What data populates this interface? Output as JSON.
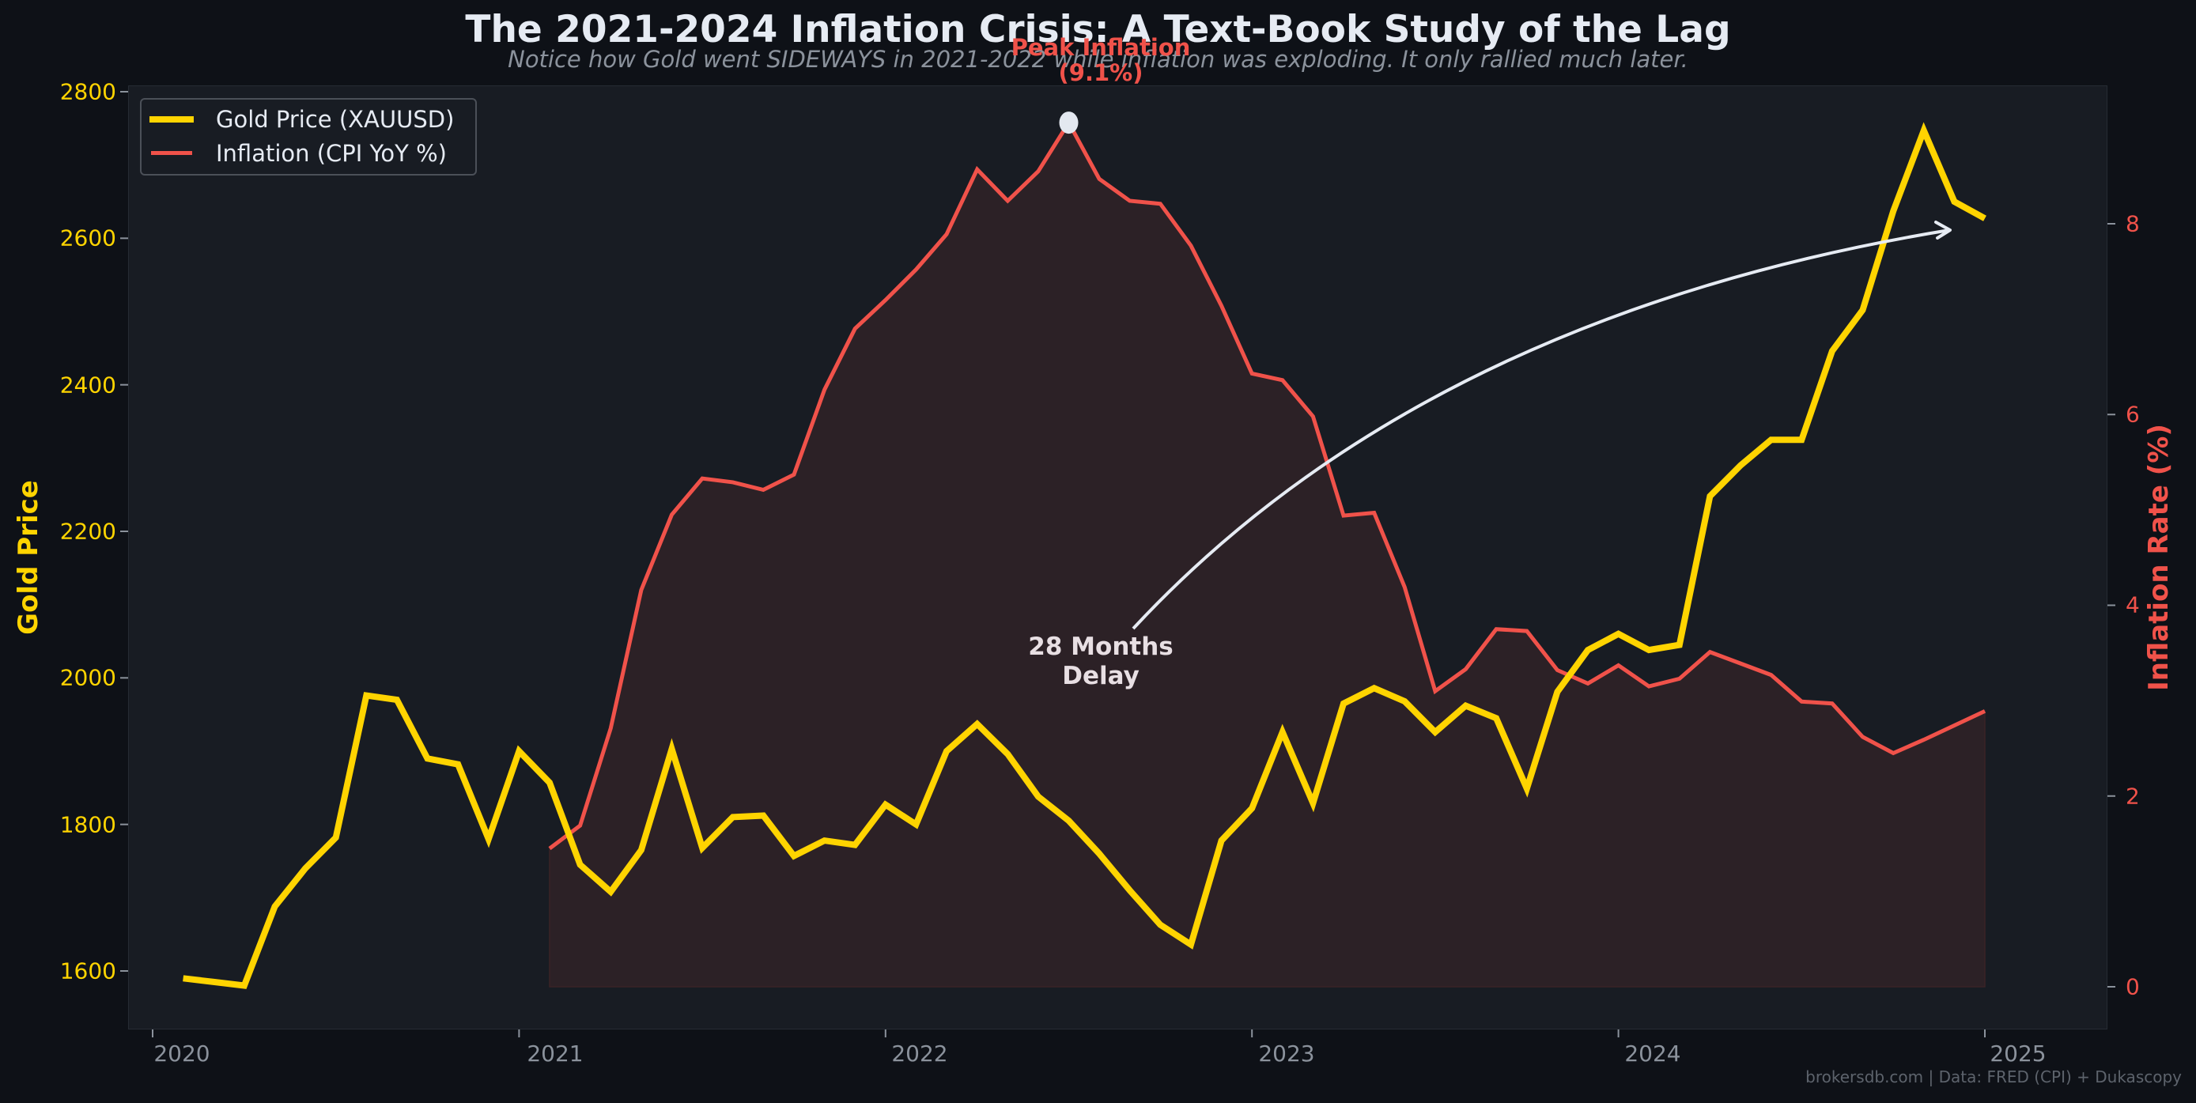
{
  "header": {
    "title": "The 2021-2024 Inflation Crisis: A Text-Book Study of the Lag",
    "subtitle": "Notice how Gold went SIDEWAYS in 2021-2022 while inflation was exploding. It only rallied much later."
  },
  "legend": {
    "items": [
      {
        "label": "Gold Price (XAUUSD)",
        "color": "#ffd400"
      },
      {
        "label": "Inflation (CPI YoY %)",
        "color": "#f0524a"
      }
    ]
  },
  "annotations": {
    "peak_line1": "Peak Inflation",
    "peak_line2": "(9.1%)",
    "delay_line1": "28 Months",
    "delay_line2": "Delay"
  },
  "axes": {
    "left_label": "Gold Price",
    "right_label": "Inflation Rate (%)",
    "left_ticks": [
      "1600",
      "1800",
      "2000",
      "2200",
      "2400",
      "2600",
      "2800"
    ],
    "right_ticks": [
      "0",
      "2",
      "4",
      "6",
      "8"
    ],
    "x_ticks": [
      "2020",
      "2021",
      "2022",
      "2023",
      "2024",
      "2025"
    ]
  },
  "footer": {
    "credit": "brokersdb.com  |  Data: FRED (CPI) + Dukascopy"
  },
  "colors": {
    "gold": "#ffd400",
    "inflation": "#f0524a",
    "background": "#0e1117",
    "plot_background": "#181c23",
    "fill": "#2c2126",
    "arrow": "#e6ebf3"
  },
  "chart_data": {
    "type": "line",
    "title": "The 2021-2024 Inflation Crisis: A Text-Book Study of the Lag",
    "subtitle": "Notice how Gold went SIDEWAYS in 2021-2022 while inflation was exploding. It only rallied much later.",
    "xlabel": "",
    "ylabel": "Gold Price",
    "ylabel_right": "Inflation Rate (%)",
    "xlim": [
      "2019-11",
      "2025-04"
    ],
    "ylim": [
      1520,
      2810
    ],
    "ylim_right": [
      -0.6,
      9.3
    ],
    "grid": false,
    "legend_position": "upper left",
    "series": [
      {
        "name": "Gold Price (XAUUSD)",
        "axis": "left",
        "color": "#ffd400",
        "start": "2020-02",
        "frequency": "monthly",
        "values": [
          1590,
          1585,
          1580,
          1688,
          1740,
          1782,
          1976,
          1970,
          1890,
          1882,
          1780,
          1900,
          1857,
          1745,
          1708,
          1765,
          1903,
          1768,
          1810,
          1812,
          1757,
          1778,
          1772,
          1827,
          1800,
          1900,
          1937,
          1896,
          1838,
          1805,
          1760,
          1710,
          1663,
          1636,
          1778,
          1822,
          1926,
          1829,
          1965,
          1986,
          1968,
          1926,
          1962,
          1945,
          1849,
          1981,
          2038,
          2060,
          2038,
          2045,
          2248,
          2290,
          2325,
          2325,
          2446,
          2502,
          2637,
          2747,
          2650,
          2627
        ]
      },
      {
        "name": "Inflation (CPI YoY %)",
        "axis": "right",
        "color": "#f0524a",
        "filled": true,
        "start": "2021-02",
        "frequency": "monthly",
        "values": [
          1.45,
          1.69,
          2.71,
          4.16,
          4.95,
          5.33,
          5.29,
          5.21,
          5.37,
          6.26,
          6.9,
          7.2,
          7.52,
          7.89,
          8.57,
          8.24,
          8.55,
          9.06,
          8.47,
          8.24,
          8.21,
          7.77,
          7.14,
          6.43,
          6.36,
          5.98,
          4.94,
          4.97,
          4.19,
          3.1,
          3.33,
          3.75,
          3.73,
          3.32,
          3.18,
          3.37,
          3.15,
          3.23,
          3.51,
          3.39,
          3.27,
          2.99,
          2.97,
          2.62,
          2.45,
          2.59,
          2.74,
          2.89
        ]
      }
    ],
    "annotations": [
      {
        "text": "Peak Inflation (9.1%)",
        "x": "2022-06",
        "y": 9.1,
        "axis": "right",
        "marker": "circle"
      },
      {
        "text": "28 Months Delay",
        "x": "2022-06",
        "arrow_to": "2024-10",
        "type": "curved-arrow"
      }
    ]
  }
}
